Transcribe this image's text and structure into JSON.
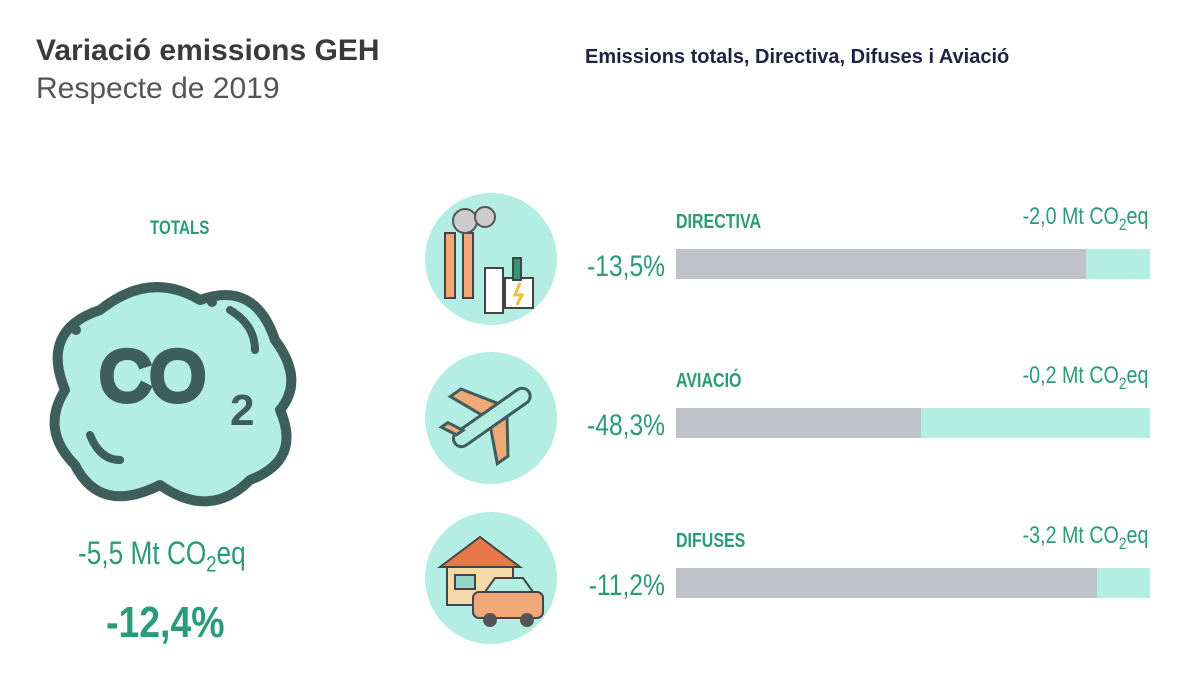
{
  "header": {
    "title": "Variació emissions GEH",
    "subtitle": "Respecte de 2019",
    "right_title": "Emissions totals, Directiva, Difuses i Aviació"
  },
  "totals": {
    "label": "TOTALS",
    "mt_prefix": "-5,5 Mt CO",
    "mt_sub": "2",
    "mt_suffix": "eq",
    "pct": "-12,4%",
    "icon": "co2-cloud-icon"
  },
  "colors": {
    "teal_text": "#2b9a78",
    "light_teal": "#b3ede3",
    "gray_bar": "#c0c2cb"
  },
  "chart_data": {
    "type": "bar",
    "title": "Emissions totals, Directiva, Difuses i Aviació",
    "categories": [
      "DIRECTIVA",
      "AVIACIÓ",
      "DIFUSES"
    ],
    "values": [
      -13.5,
      -48.3,
      -11.2
    ],
    "unit": "% change vs 2019",
    "ylim": [
      0,
      100
    ],
    "rows": [
      {
        "label": "DIRECTIVA",
        "pct_value": -13.5,
        "pct": "-13,5%",
        "mt_prefix": "-2,0 Mt CO",
        "mt_sub": "2",
        "mt_suffix": "eq",
        "icon": "factory-icon"
      },
      {
        "label": "AVIACIÓ",
        "pct_value": -48.3,
        "pct": "-48,3%",
        "mt_prefix": "-0,2 Mt CO",
        "mt_sub": "2",
        "mt_suffix": "eq",
        "icon": "airplane-icon"
      },
      {
        "label": "DIFUSES",
        "pct_value": -11.2,
        "pct": "-11,2%",
        "mt_prefix": "-3,2 Mt CO",
        "mt_sub": "2",
        "mt_suffix": "eq",
        "icon": "house-car-icon"
      }
    ]
  }
}
